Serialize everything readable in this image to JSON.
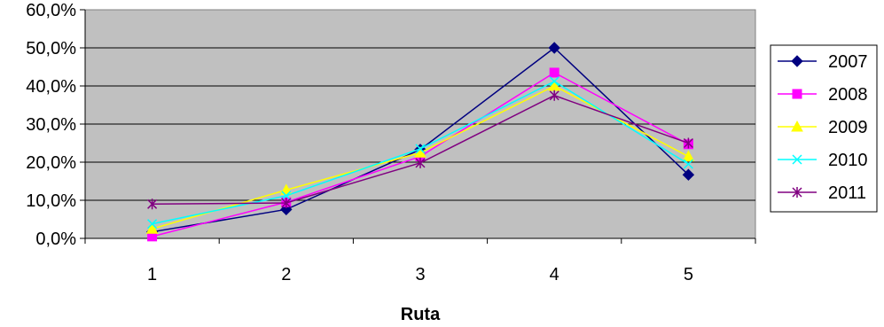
{
  "chart_data": {
    "type": "line",
    "title": "",
    "xlabel": "Ruta",
    "ylabel": "",
    "categories": [
      "1",
      "2",
      "3",
      "4",
      "5"
    ],
    "ylim": [
      0,
      60
    ],
    "yticks": [
      "0,0%",
      "10,0%",
      "20,0%",
      "30,0%",
      "40,0%",
      "50,0%",
      "60,0%"
    ],
    "grid": true,
    "legend_position": "right",
    "plot_background": "#c0c0c0",
    "series": [
      {
        "name": "2007",
        "color": "#000080",
        "marker": "diamond",
        "values": [
          1.7,
          7.6,
          23.3,
          50.0,
          16.7
        ]
      },
      {
        "name": "2008",
        "color": "#ff00ff",
        "marker": "square",
        "values": [
          0.5,
          9.5,
          21.5,
          43.5,
          24.7
        ]
      },
      {
        "name": "2009",
        "color": "#ffff00",
        "marker": "triangle",
        "values": [
          2.5,
          12.7,
          22.5,
          40.0,
          21.5
        ]
      },
      {
        "name": "2010",
        "color": "#00ffff",
        "marker": "x",
        "values": [
          3.8,
          11.2,
          23.5,
          41.2,
          19.5
        ]
      },
      {
        "name": "2011",
        "color": "#800080",
        "marker": "star",
        "values": [
          9.0,
          9.3,
          19.8,
          37.5,
          25.0
        ]
      }
    ]
  }
}
